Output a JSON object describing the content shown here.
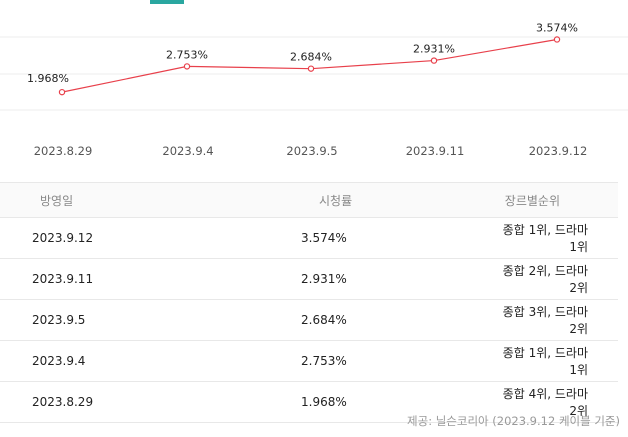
{
  "chart_data": {
    "type": "line",
    "categories": [
      "2023.8.29",
      "2023.9.4",
      "2023.9.5",
      "2023.9.11",
      "2023.9.12"
    ],
    "values": [
      1.968,
      2.753,
      2.684,
      2.931,
      3.574
    ],
    "labels": [
      "1.968%",
      "2.753%",
      "2.684%",
      "2.931%",
      "3.574%"
    ],
    "line_color": "#e8404b",
    "grid": true
  },
  "table": {
    "headers": [
      "방영일",
      "시청률",
      "장르별순위"
    ],
    "rows": [
      [
        "2023.9.12",
        "3.574%",
        "종합 1위, 드라마 1위"
      ],
      [
        "2023.9.11",
        "2.931%",
        "종합 2위, 드라마 2위"
      ],
      [
        "2023.9.5",
        "2.684%",
        "종합 3위, 드라마 2위"
      ],
      [
        "2023.9.4",
        "2.753%",
        "종합 1위, 드라마 1위"
      ],
      [
        "2023.8.29",
        "1.968%",
        "종합 4위, 드라마 2위"
      ]
    ]
  },
  "source_note": "제공: 닐슨코리아 (2023.9.12 케이블 기준)",
  "colors": {
    "accent": "#2aa7a0",
    "line": "#e8404b"
  }
}
